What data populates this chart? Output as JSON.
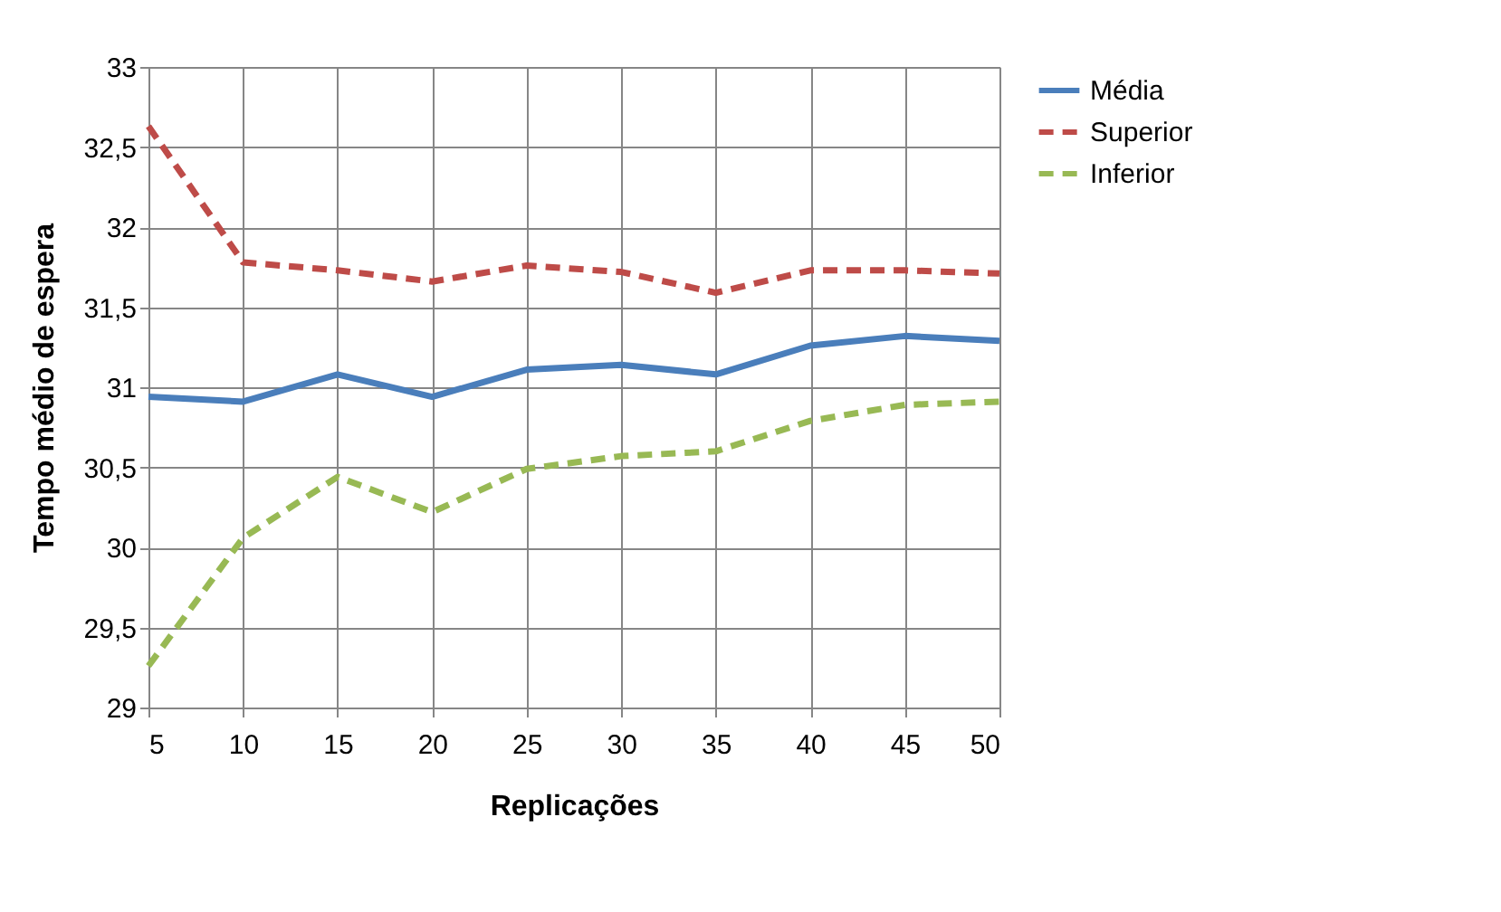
{
  "chart_data": {
    "type": "line",
    "xlabel": "Replicações",
    "ylabel": "Tempo médio de espera",
    "x": [
      5,
      10,
      15,
      20,
      25,
      30,
      35,
      40,
      45,
      50
    ],
    "xlim": [
      5,
      50
    ],
    "xticks": [
      5,
      10,
      15,
      20,
      25,
      30,
      35,
      40,
      45,
      50
    ],
    "ylim": [
      29,
      33
    ],
    "yticks": [
      29,
      {
        "value": 29.5,
        "label": "29,5"
      },
      30,
      {
        "value": 30.5,
        "label": "30,5"
      },
      31,
      {
        "value": 31.5,
        "label": "31,5"
      },
      32,
      {
        "value": 32.5,
        "label": "32,5"
      },
      33
    ],
    "grid": true,
    "legend": "right",
    "marker": "none",
    "series": [
      {
        "name": "Média",
        "color": "#4a7ebb",
        "line_style": "solid",
        "values": [
          30.94,
          30.91,
          31.08,
          30.94,
          31.11,
          31.14,
          31.08,
          31.26,
          31.32,
          31.29
        ]
      },
      {
        "name": "Superior",
        "color": "#be4b48",
        "line_style": "dashed",
        "values": [
          32.63,
          31.78,
          31.73,
          31.66,
          31.76,
          31.72,
          31.59,
          31.73,
          31.73,
          31.71
        ]
      },
      {
        "name": "Inferior",
        "color": "#98b954",
        "line_style": "dashed",
        "values": [
          29.26,
          30.06,
          30.44,
          30.22,
          30.49,
          30.57,
          30.6,
          30.79,
          30.89,
          30.91
        ]
      }
    ]
  }
}
